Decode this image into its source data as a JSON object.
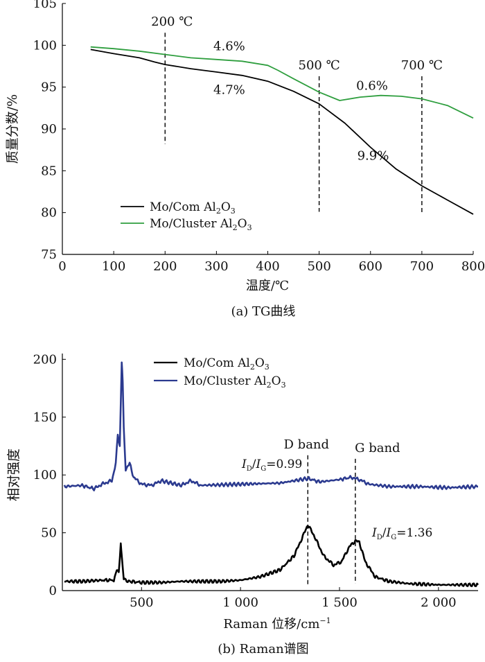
{
  "chart_data": [
    {
      "type": "line",
      "caption": "(a) TG曲线",
      "xlabel": "温度/℃",
      "ylabel": "质量分数/%",
      "xlim": [
        0,
        800
      ],
      "ylim": [
        75,
        105
      ],
      "xticks": [
        0,
        100,
        200,
        300,
        400,
        500,
        600,
        700,
        800
      ],
      "yticks": [
        75,
        80,
        85,
        90,
        95,
        100,
        105
      ],
      "grid": false,
      "legend_position": "bottom-left",
      "series": [
        {
          "name": "Mo/Com Al2O3",
          "color": "#000000",
          "x": [
            55,
            100,
            150,
            180,
            200,
            250,
            300,
            350,
            400,
            450,
            500,
            550,
            600,
            650,
            700,
            750,
            800
          ],
          "y": [
            99.5,
            99.0,
            98.5,
            98.0,
            97.7,
            97.2,
            96.8,
            96.4,
            95.7,
            94.5,
            93.0,
            90.7,
            87.8,
            85.2,
            83.2,
            81.5,
            79.8
          ]
        },
        {
          "name": "Mo/Cluster Al2O3",
          "color": "#2e9e3e",
          "x": [
            55,
            100,
            150,
            200,
            250,
            300,
            350,
            400,
            420,
            450,
            500,
            540,
            580,
            620,
            660,
            700,
            750,
            800
          ],
          "y": [
            99.8,
            99.6,
            99.3,
            98.9,
            98.5,
            98.3,
            98.1,
            97.6,
            97.0,
            96.0,
            94.4,
            93.4,
            93.8,
            94.0,
            93.9,
            93.6,
            92.8,
            91.3
          ]
        }
      ],
      "reference_lines": [
        {
          "x": 200,
          "label": "200 ℃"
        },
        {
          "x": 500,
          "label": "500 ℃"
        },
        {
          "x": 700,
          "label": "700 ℃"
        }
      ],
      "annotations": [
        {
          "text": "4.6%",
          "x": 325,
          "y": 99.4
        },
        {
          "text": "4.7%",
          "x": 325,
          "y": 94.2
        },
        {
          "text": "0.6%",
          "x": 603,
          "y": 94.7
        },
        {
          "text": "9.9%",
          "x": 605,
          "y": 86.3
        }
      ]
    },
    {
      "type": "line",
      "caption": "(b) Raman谱图",
      "xlabel": "Raman 位移/cm⁻¹",
      "ylabel": "相对强度",
      "xlim": [
        100,
        2200
      ],
      "ylim": [
        0,
        205
      ],
      "xticks": [
        500,
        1000,
        1500,
        2000
      ],
      "xtick_labels": [
        "500",
        "1 000",
        "1 500",
        "2 000"
      ],
      "yticks": [
        0,
        50,
        100,
        150,
        200
      ],
      "grid": false,
      "legend_position": "top-center",
      "series": [
        {
          "name": "Mo/Com Al2O3",
          "color": "#000000",
          "x": [
            110,
            200,
            300,
            360,
            375,
            385,
            395,
            400,
            410,
            420,
            440,
            500,
            600,
            700,
            800,
            900,
            1000,
            1100,
            1200,
            1270,
            1310,
            1340,
            1370,
            1420,
            1470,
            1510,
            1550,
            1580,
            1600,
            1630,
            1680,
            1750,
            1850,
            2000,
            2100,
            2200
          ],
          "y": [
            8,
            8,
            9,
            9,
            18,
            15,
            42,
            30,
            10,
            9,
            8,
            7,
            7,
            8,
            8,
            8,
            9,
            12,
            18,
            30,
            45,
            57,
            48,
            30,
            22,
            25,
            38,
            43,
            42,
            25,
            12,
            8,
            6,
            5,
            5,
            5
          ]
        },
        {
          "name": "Mo/Cluster Al2O3",
          "color": "#2b3a8f",
          "x": [
            110,
            200,
            260,
            300,
            350,
            370,
            380,
            390,
            400,
            405,
            410,
            420,
            440,
            460,
            500,
            550,
            600,
            700,
            750,
            800,
            1000,
            1200,
            1340,
            1400,
            1500,
            1560,
            1600,
            1650,
            1750,
            1900,
            2050,
            2200
          ],
          "y": [
            90,
            91,
            88,
            92,
            95,
            110,
            135,
            125,
            198,
            180,
            140,
            105,
            110,
            98,
            92,
            91,
            95,
            91,
            95,
            91,
            92,
            93,
            97,
            94,
            96,
            98,
            96,
            92,
            90,
            90,
            89,
            90
          ]
        }
      ],
      "reference_lines": [
        {
          "x": 1340,
          "label": "D band"
        },
        {
          "x": 1580,
          "label": "G band"
        }
      ],
      "annotations": [
        {
          "text": "ID/IG=0.99",
          "x": 1350,
          "y": 104
        },
        {
          "text": "ID/IG=1.36",
          "x": 1680,
          "y": 52
        }
      ]
    }
  ],
  "legend_a": [
    "Mo/Com Al2O3",
    "Mo/Cluster Al2O3"
  ],
  "legend_b": [
    "Mo/Com Al2O3",
    "Mo/Cluster Al2O3"
  ]
}
